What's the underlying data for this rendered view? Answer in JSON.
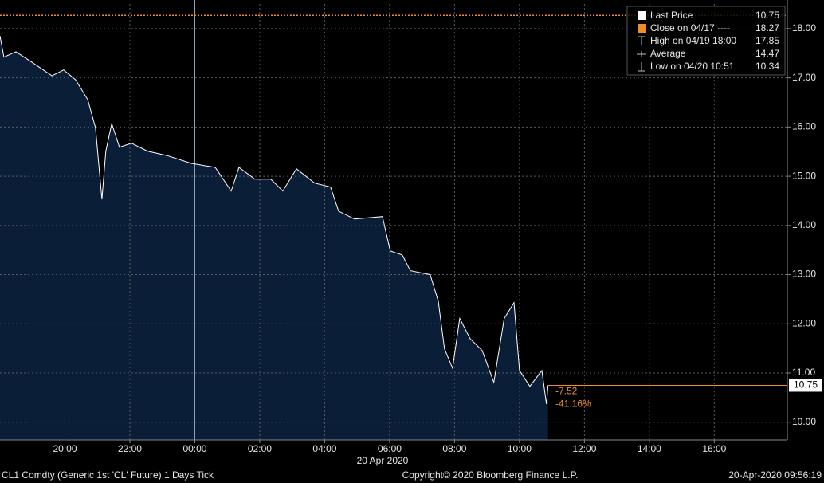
{
  "chart_data": {
    "type": "area",
    "x": [
      0,
      0.12,
      0.49,
      0.98,
      1.6,
      1.96,
      2.33,
      2.7,
      2.94,
      3.14,
      3.26,
      3.44,
      3.68,
      4.05,
      4.54,
      5.15,
      5.89,
      6.63,
      7.12,
      7.36,
      7.85,
      8.34,
      8.71,
      9.13,
      9.69,
      10.18,
      10.43,
      10.92,
      11.78,
      12.02,
      12.39,
      12.64,
      13.25,
      13.5,
      13.69,
      13.94,
      14.16,
      14.48,
      14.85,
      15.21,
      15.53,
      15.83,
      16.0,
      16.32,
      16.69,
      16.83,
      16.88
    ],
    "values": [
      17.85,
      17.42,
      17.53,
      17.32,
      17.04,
      17.16,
      16.96,
      16.56,
      15.99,
      14.53,
      15.51,
      16.07,
      15.59,
      15.67,
      15.51,
      15.42,
      15.26,
      15.18,
      14.7,
      15.18,
      14.94,
      14.94,
      14.7,
      15.15,
      14.86,
      14.78,
      14.29,
      14.13,
      14.18,
      13.48,
      13.4,
      13.08,
      13.0,
      12.46,
      11.49,
      11.1,
      12.11,
      11.7,
      11.46,
      10.81,
      12.11,
      12.43,
      11.05,
      10.73,
      11.05,
      10.37,
      10.75
    ],
    "line_color": "#ffffff",
    "fill_color": "#0b1e38",
    "xlim": [
      0,
      24.25
    ],
    "xticks": [
      {
        "value": 2,
        "label": "20:00"
      },
      {
        "value": 4,
        "label": "22:00"
      },
      {
        "value": 6,
        "label": "00:00"
      },
      {
        "value": 8,
        "label": "02:00"
      },
      {
        "value": 10,
        "label": "04:00"
      },
      {
        "value": 12,
        "label": "06:00"
      },
      {
        "value": 14,
        "label": "08:00"
      },
      {
        "value": 16,
        "label": "10:00"
      },
      {
        "value": 18,
        "label": "12:00"
      },
      {
        "value": 20,
        "label": "14:00"
      },
      {
        "value": 22,
        "label": "16:00"
      }
    ],
    "x_sublabel": "20 Apr 2020",
    "ylim": [
      9.64,
      18.5
    ],
    "yticks": [
      {
        "value": 10,
        "label": "10.00"
      },
      {
        "value": 11,
        "label": "11.00"
      },
      {
        "value": 12,
        "label": "12.00"
      },
      {
        "value": 13,
        "label": "13.00"
      },
      {
        "value": 14,
        "label": "14.00"
      },
      {
        "value": 15,
        "label": "15.00"
      },
      {
        "value": 16,
        "label": "16.00"
      },
      {
        "value": 17,
        "label": "17.00"
      },
      {
        "value": 18,
        "label": "18.00"
      }
    ],
    "grid": true,
    "day_divider": 6,
    "legend": [
      {
        "label": "Last Price",
        "value": 10.75
      },
      {
        "label": "Close on 04/17 ----",
        "value": 18.27
      },
      {
        "label": "High on 04/19 18:00",
        "value": 17.85
      },
      {
        "label": "Average",
        "value": 14.47
      },
      {
        "label": "Low on 04/20 10:51",
        "value": 10.34
      }
    ],
    "accent_color": "#f08c2a",
    "annotations": [
      "-7.52",
      "-41.16%"
    ],
    "footer": {
      "left": "CL1 Comdty (Generic 1st 'CL' Future) 1 Days  Tick",
      "center": "Copyright© 2020 Bloomberg Finance L.P.",
      "right": "20-Apr-2020 09:56:19"
    }
  }
}
